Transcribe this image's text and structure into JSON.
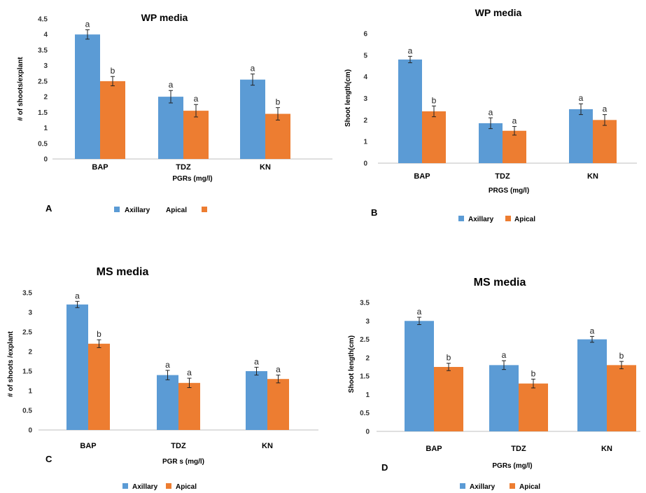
{
  "colors": {
    "axillary": "#5b9bd5",
    "apical": "#ed7d31"
  },
  "chart_data": [
    {
      "type": "bar",
      "panel": "A",
      "title": "WP media",
      "xlabel": "PGRs (mg/l)",
      "ylabel": "# of shoots/explant",
      "ylim": [
        0,
        4.5
      ],
      "ticks": [
        "0",
        "0.5",
        "1",
        "1.5",
        "2",
        "2.5",
        "3",
        "3.5",
        "4",
        "4.5"
      ],
      "categories": [
        "BAP",
        "TDZ",
        "KN"
      ],
      "legend": [
        "Axillary",
        "Apical"
      ],
      "series": [
        {
          "name": "Axillary",
          "values": [
            4.0,
            2.0,
            2.55
          ],
          "errors": [
            0.15,
            0.2,
            0.18
          ],
          "letters": [
            "a",
            "a",
            "a"
          ]
        },
        {
          "name": "Apical",
          "values": [
            2.5,
            1.55,
            1.45
          ],
          "errors": [
            0.15,
            0.2,
            0.2
          ],
          "letters": [
            "b",
            "a",
            "b"
          ]
        }
      ]
    },
    {
      "type": "bar",
      "panel": "B",
      "title": "WP media",
      "xlabel": "PRGS (mg/l)",
      "ylabel": "Shoot length(cm)",
      "ylim": [
        0,
        6
      ],
      "ticks": [
        "0",
        "1",
        "2",
        "3",
        "4",
        "5",
        "6"
      ],
      "categories": [
        "BAP",
        "TDZ",
        "KN"
      ],
      "legend": [
        "Axillary",
        "Apical"
      ],
      "series": [
        {
          "name": "Axillary",
          "values": [
            4.8,
            1.85,
            2.5
          ],
          "errors": [
            0.15,
            0.25,
            0.25
          ],
          "letters": [
            "a",
            "a",
            "a"
          ]
        },
        {
          "name": "Apical",
          "values": [
            2.4,
            1.5,
            2.0
          ],
          "errors": [
            0.25,
            0.2,
            0.25
          ],
          "letters": [
            "b",
            "a",
            "a"
          ]
        }
      ]
    },
    {
      "type": "bar",
      "panel": "C",
      "title": "MS media",
      "xlabel": "PGR s (mg/l)",
      "ylabel": "# of shoots /explant",
      "ylim": [
        0,
        3.5
      ],
      "ticks": [
        "0",
        "0.5",
        "1",
        "1.5",
        "2",
        "2.5",
        "3",
        "3.5"
      ],
      "categories": [
        "BAP",
        "TDZ",
        "KN"
      ],
      "legend": [
        "Axillary",
        "Apical"
      ],
      "series": [
        {
          "name": "Axillary",
          "values": [
            3.2,
            1.4,
            1.5
          ],
          "errors": [
            0.08,
            0.12,
            0.1
          ],
          "letters": [
            "a",
            "a",
            "a"
          ]
        },
        {
          "name": "Apical",
          "values": [
            2.2,
            1.2,
            1.3
          ],
          "errors": [
            0.1,
            0.12,
            0.1
          ],
          "letters": [
            "b",
            "a",
            "a"
          ]
        }
      ]
    },
    {
      "type": "bar",
      "panel": "D",
      "title": "MS media",
      "xlabel": "PGRs (mg/l)",
      "ylabel": "Shoot length(cm)",
      "ylim": [
        0,
        3.5
      ],
      "ticks": [
        "0",
        "0.5",
        "1",
        "1.5",
        "2",
        "2.5",
        "3",
        "3.5"
      ],
      "categories": [
        "BAP",
        "TDZ",
        "KN"
      ],
      "legend": [
        "Axillary",
        "Apical"
      ],
      "series": [
        {
          "name": "Axillary",
          "values": [
            3.0,
            1.8,
            2.5
          ],
          "errors": [
            0.1,
            0.12,
            0.08
          ],
          "letters": [
            "a",
            "a",
            "a"
          ]
        },
        {
          "name": "Apical",
          "values": [
            1.75,
            1.3,
            1.8
          ],
          "errors": [
            0.1,
            0.12,
            0.1
          ],
          "letters": [
            "b",
            "b",
            "b"
          ]
        }
      ]
    }
  ]
}
